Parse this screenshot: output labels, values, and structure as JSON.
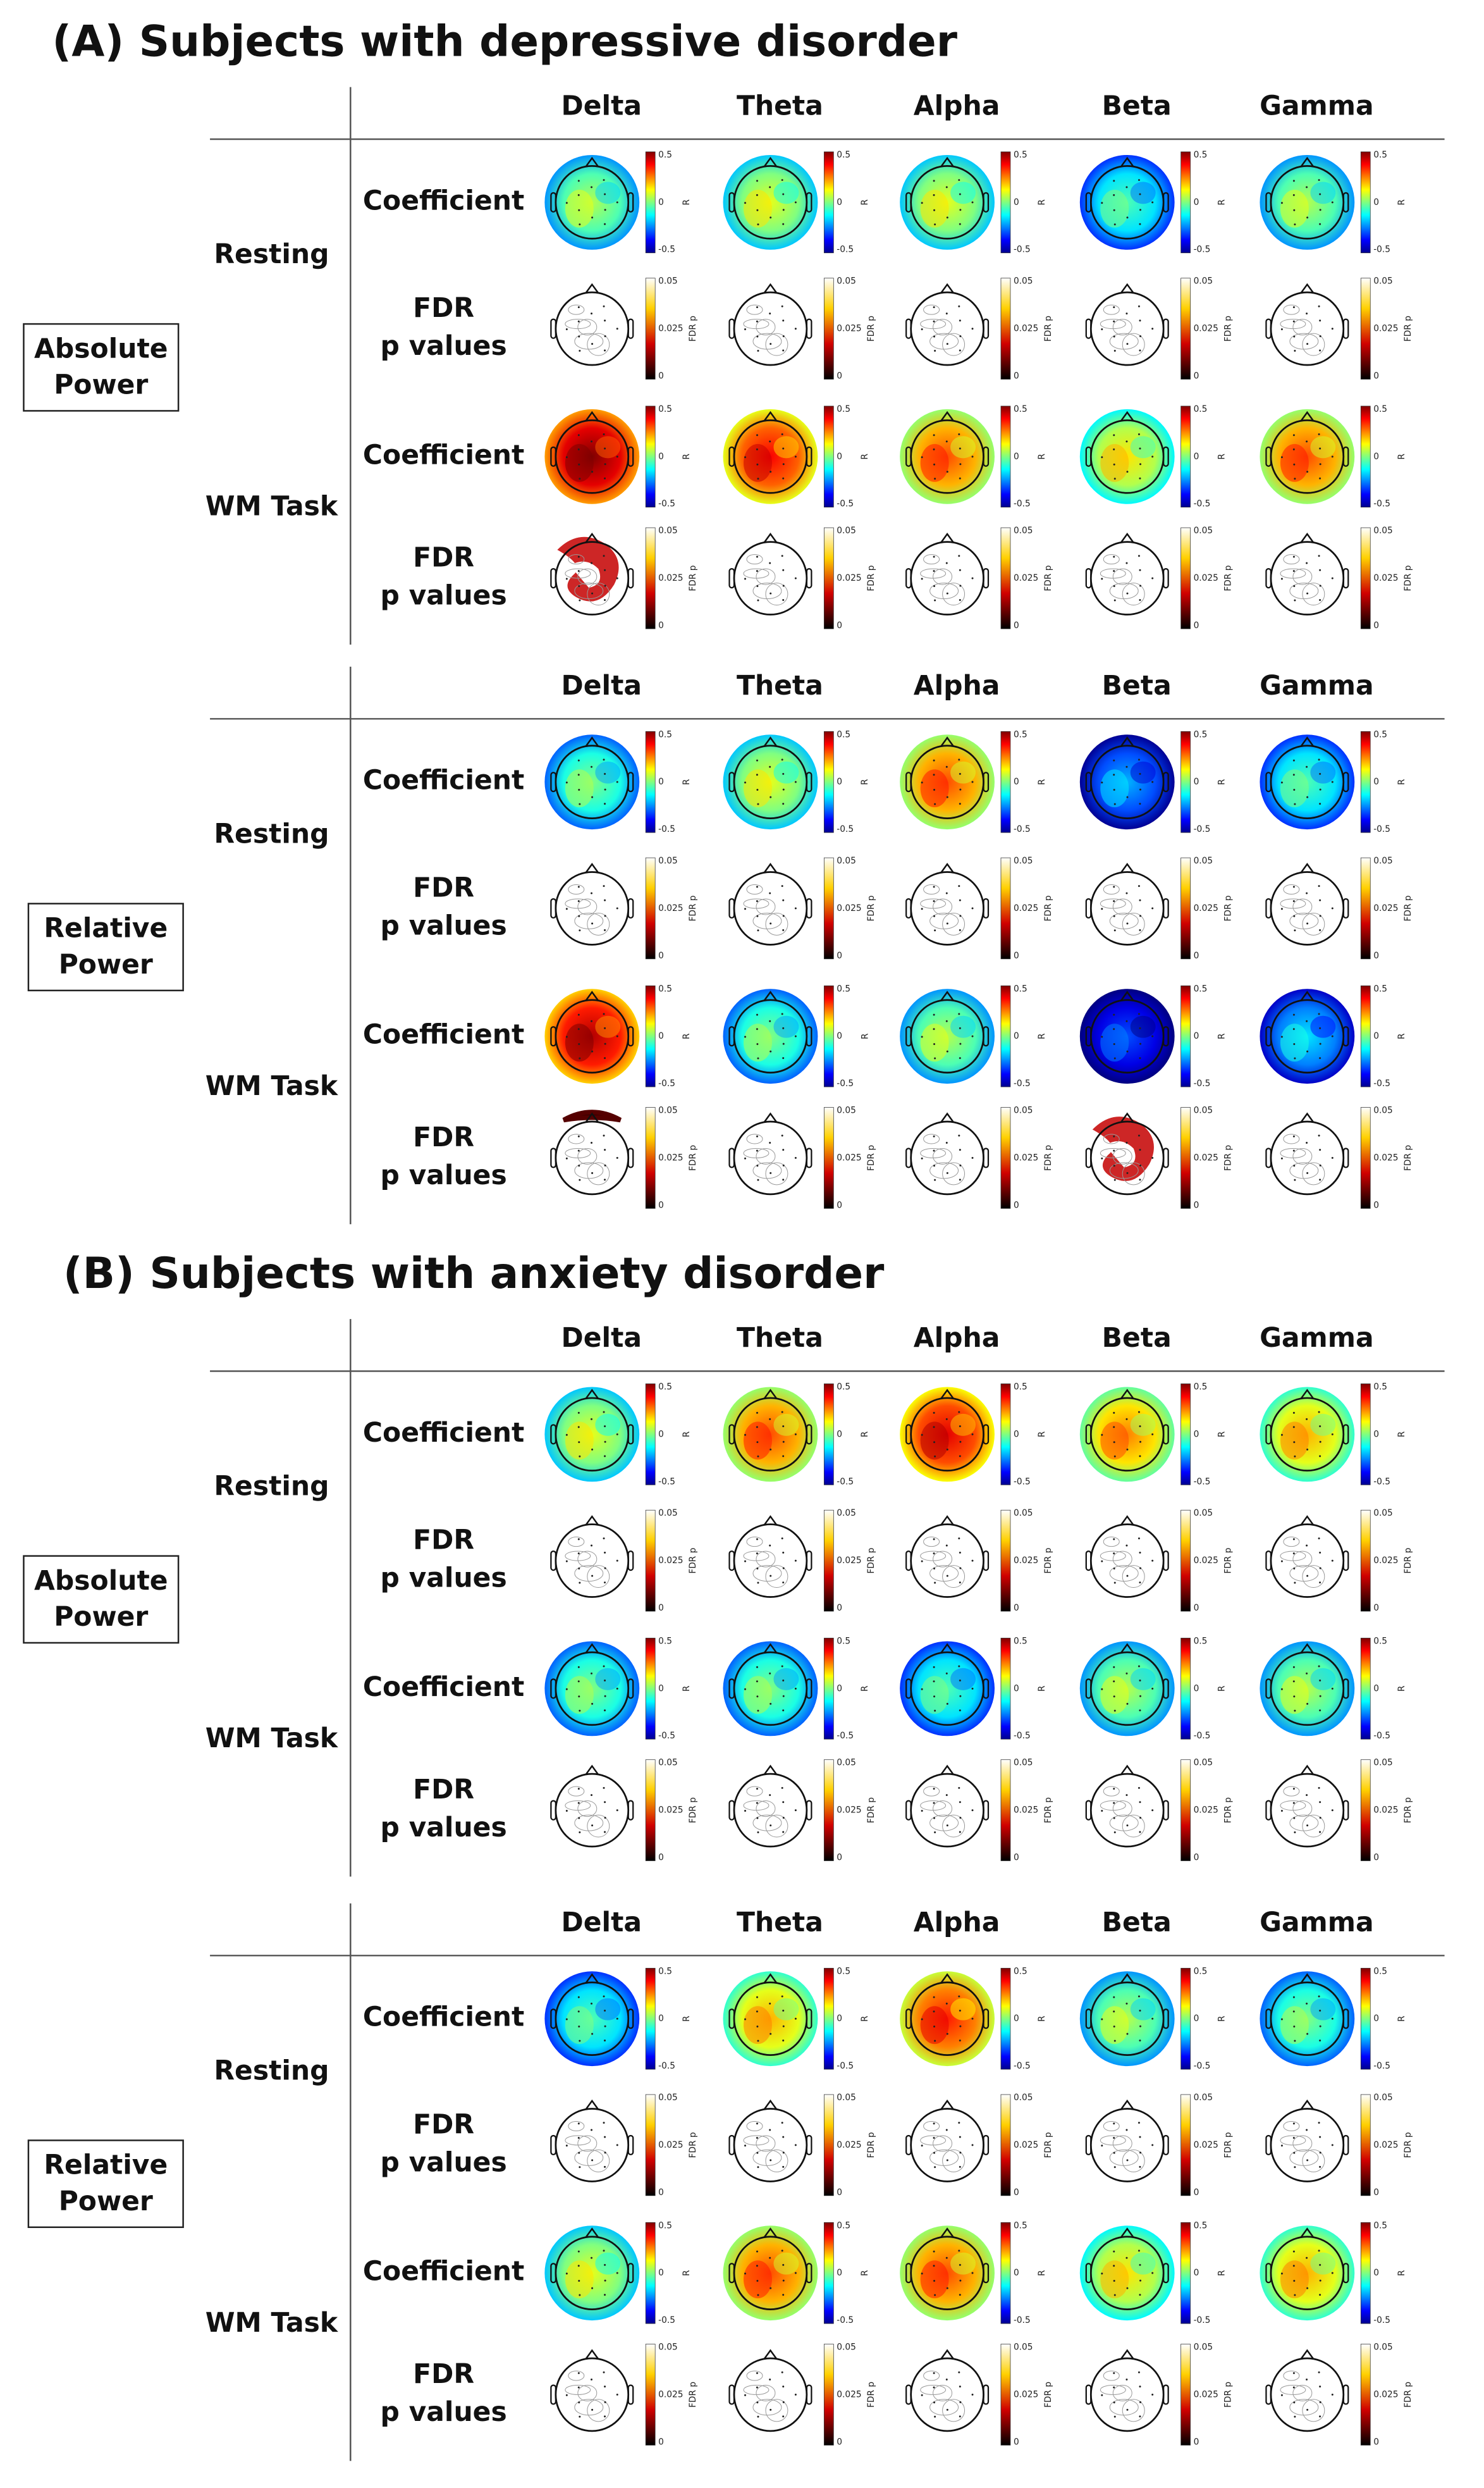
{
  "panels": [
    {
      "title": "(A) Subjects with depressive disorder",
      "blocks": [
        {
          "measure": "Absolute Power",
          "bands": [
            "Delta",
            "Theta",
            "Alpha",
            "Beta",
            "Gamma"
          ],
          "conditions": [
            {
              "name": "Resting",
              "rows": [
                [
                  "Coefficient"
                ],
                [
                  "FDR",
                  "p values"
                ]
              ]
            },
            {
              "name": "WM Task",
              "rows": [
                [
                  "Coefficient"
                ],
                [
                  "FDR",
                  "p values"
                ]
              ]
            }
          ]
        },
        {
          "measure": "Relative Power",
          "bands": [
            "Delta",
            "Theta",
            "Alpha",
            "Beta",
            "Gamma"
          ],
          "conditions": [
            {
              "name": "Resting",
              "rows": [
                [
                  "Coefficient"
                ],
                [
                  "FDR",
                  "p values"
                ]
              ]
            },
            {
              "name": "WM Task",
              "rows": [
                [
                  "Coefficient"
                ],
                [
                  "FDR",
                  "p values"
                ]
              ]
            }
          ]
        }
      ]
    },
    {
      "title": "(B) Subjects with anxiety disorder",
      "blocks": [
        {
          "measure": "Absolute Power",
          "bands": [
            "Delta",
            "Theta",
            "Alpha",
            "Beta",
            "Gamma"
          ],
          "conditions": [
            {
              "name": "Resting",
              "rows": [
                [
                  "Coefficient"
                ],
                [
                  "FDR",
                  "p values"
                ]
              ]
            },
            {
              "name": "WM Task",
              "rows": [
                [
                  "Coefficient"
                ],
                [
                  "FDR",
                  "p values"
                ]
              ]
            }
          ]
        },
        {
          "measure": "Relative Power",
          "bands": [
            "Delta",
            "Theta",
            "Alpha",
            "Beta",
            "Gamma"
          ],
          "conditions": [
            {
              "name": "Resting",
              "rows": [
                [
                  "Coefficient"
                ],
                [
                  "FDR",
                  "p values"
                ]
              ]
            },
            {
              "name": "WM Task",
              "rows": [
                [
                  "Coefficient"
                ],
                [
                  "FDR",
                  "p values"
                ]
              ]
            }
          ]
        }
      ]
    }
  ],
  "colorbars": {
    "coefficient": {
      "ticks": [
        "0.5",
        "0",
        "-0.5"
      ],
      "label": "R"
    },
    "fdr": {
      "ticks": [
        "0.05",
        "0.025",
        "0"
      ],
      "label": "FDR p"
    }
  }
}
